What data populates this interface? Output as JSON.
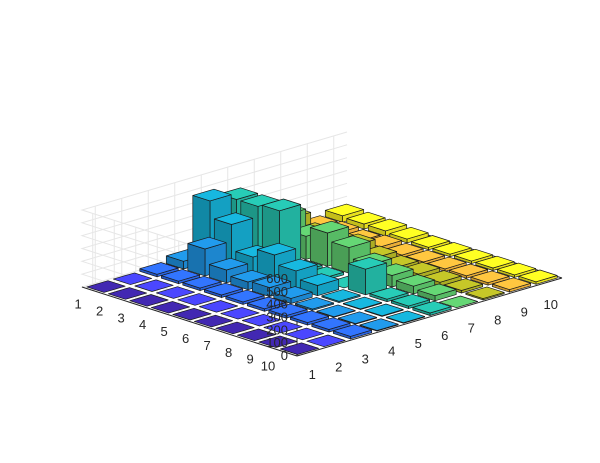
{
  "chart_data": {
    "type": "bar3",
    "title": "",
    "xlabel": "",
    "ylabel": "",
    "zlabel": "",
    "x_categories": [
      "1",
      "2",
      "3",
      "4",
      "5",
      "6",
      "7",
      "8",
      "9",
      "10"
    ],
    "y_categories": [
      "1",
      "2",
      "3",
      "4",
      "5",
      "6",
      "7",
      "8",
      "9",
      "10"
    ],
    "zlim": [
      0,
      600
    ],
    "z_ticks": [
      "0",
      "100",
      "200",
      "300",
      "400",
      "500",
      "600"
    ],
    "grid": true,
    "colormap": [
      "#3e26a8",
      "#4743f8",
      "#2f6ef7",
      "#1f92e0",
      "#16aed3",
      "#25c0ad",
      "#5fcb6e",
      "#bbbc26",
      "#fdbc3c",
      "#fbf321"
    ],
    "series": [
      {
        "values": [
          0,
          0,
          0,
          0,
          0,
          0,
          0,
          0,
          0,
          0
        ]
      },
      {
        "values": [
          0,
          0,
          0,
          0,
          0,
          0,
          0,
          0,
          0,
          0
        ]
      },
      {
        "values": [
          20,
          20,
          20,
          20,
          20,
          20,
          20,
          20,
          20,
          20
        ]
      },
      {
        "values": [
          60,
          210,
          100,
          60,
          70,
          40,
          10,
          5,
          5,
          5
        ]
      },
      {
        "values": [
          470,
          340,
          140,
          210,
          140,
          80,
          10,
          5,
          5,
          5
        ]
      },
      {
        "values": [
          420,
          420,
          440,
          20,
          20,
          0,
          200,
          20,
          20,
          20
        ]
      },
      {
        "values": [
          280,
          290,
          180,
          260,
          200,
          120,
          90,
          60,
          40,
          0
        ]
      },
      {
        "values": [
          150,
          80,
          80,
          100,
          60,
          40,
          40,
          30,
          20,
          10
        ]
      },
      {
        "values": [
          20,
          30,
          20,
          30,
          20,
          20,
          20,
          20,
          20,
          20
        ]
      },
      {
        "values": [
          50,
          40,
          40,
          30,
          20,
          20,
          20,
          20,
          20,
          20
        ]
      }
    ]
  }
}
